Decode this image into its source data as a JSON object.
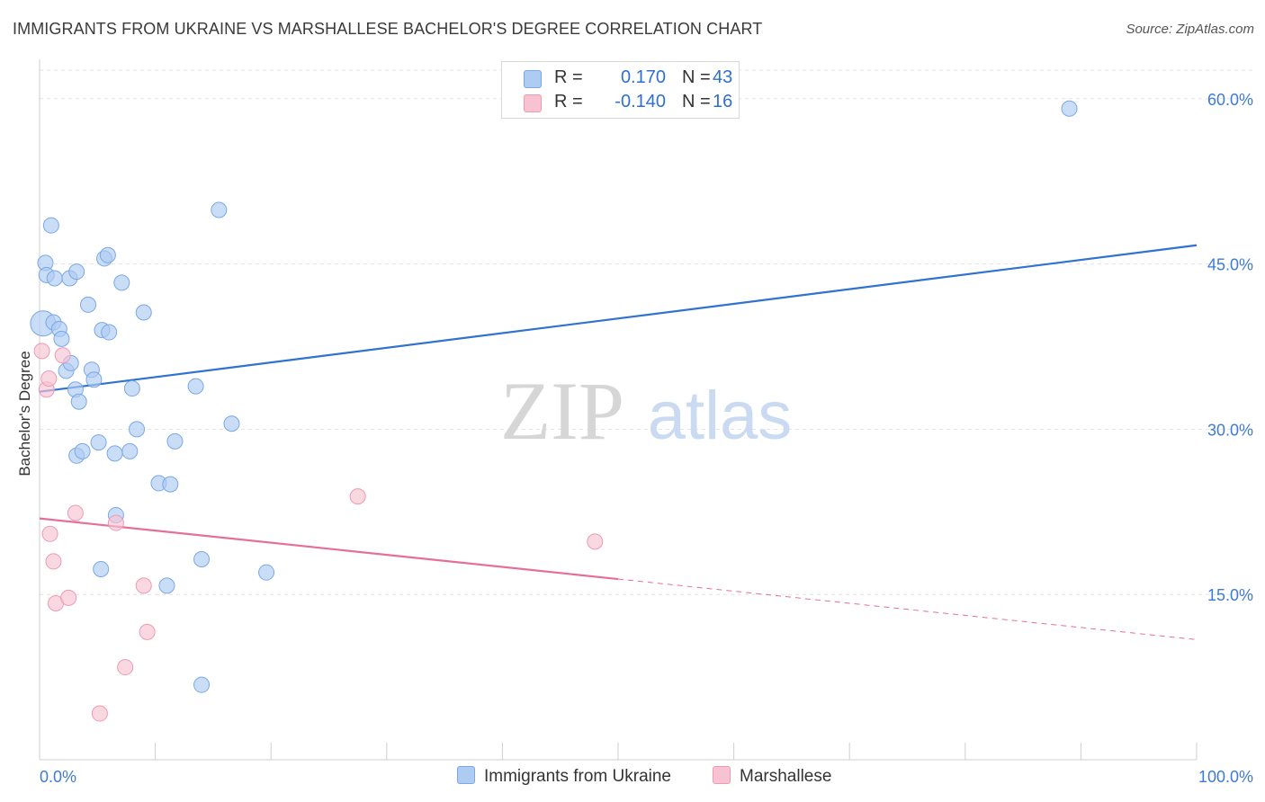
{
  "title": "IMMIGRANTS FROM UKRAINE VS MARSHALLESE BACHELOR'S DEGREE CORRELATION CHART",
  "source": "Source: ZipAtlas.com",
  "watermark": {
    "zip": "ZIP",
    "atlas": "atlas"
  },
  "colors": {
    "blue_fill": "#aecbf2",
    "blue_stroke": "#7aa8e6",
    "blue_line": "#2f72cf",
    "pink_fill": "#f7c3d3",
    "pink_stroke": "#ee9ab4",
    "pink_line": "#e4709a",
    "tick_text": "#3d7bd6",
    "grid": "#e3e3e3"
  },
  "legend": {
    "rows": [
      {
        "r_label": "R =",
        "r_value": "0.170",
        "n_label": "N =",
        "n_value": "43"
      },
      {
        "r_label": "R =",
        "r_value": "-0.140",
        "n_label": "N =",
        "n_value": "16"
      }
    ]
  },
  "bottom_legend": {
    "series1": "Immigrants from Ukraine",
    "series2": "Marshallese"
  },
  "chart_data": {
    "type": "scatter",
    "title": "IMMIGRANTS FROM UKRAINE VS MARSHALLESE BACHELOR'S DEGREE CORRELATION CHART",
    "xlabel": "",
    "ylabel": "Bachelor's Degree",
    "xlim": [
      0,
      100
    ],
    "ylim": [
      0,
      63
    ],
    "x_tick_labels": [
      "0.0%",
      "100.0%"
    ],
    "y_ticks": [
      15,
      30,
      45,
      60
    ],
    "y_tick_labels": [
      "15.0%",
      "30.0%",
      "45.0%",
      "60.0%"
    ],
    "grid": true,
    "series": [
      {
        "name": "Immigrants from Ukraine",
        "r": 0.17,
        "n": 43,
        "trend": {
          "x": [
            0,
            100
          ],
          "y": [
            33.4,
            46.7
          ],
          "dash_from": null
        },
        "points": [
          {
            "x": 0.3,
            "y": 39.6,
            "big": true
          },
          {
            "x": 0.5,
            "y": 45.1
          },
          {
            "x": 0.6,
            "y": 44.0
          },
          {
            "x": 1.0,
            "y": 48.5
          },
          {
            "x": 1.3,
            "y": 43.7
          },
          {
            "x": 1.2,
            "y": 39.7
          },
          {
            "x": 1.7,
            "y": 39.1
          },
          {
            "x": 1.9,
            "y": 38.2
          },
          {
            "x": 2.3,
            "y": 35.3
          },
          {
            "x": 2.7,
            "y": 36.0
          },
          {
            "x": 3.1,
            "y": 33.6
          },
          {
            "x": 3.4,
            "y": 32.5
          },
          {
            "x": 3.2,
            "y": 27.6
          },
          {
            "x": 3.7,
            "y": 28.0
          },
          {
            "x": 2.6,
            "y": 43.7
          },
          {
            "x": 3.2,
            "y": 44.3
          },
          {
            "x": 4.2,
            "y": 41.3
          },
          {
            "x": 4.5,
            "y": 35.4
          },
          {
            "x": 4.7,
            "y": 34.5
          },
          {
            "x": 5.1,
            "y": 28.8
          },
          {
            "x": 5.4,
            "y": 39.0
          },
          {
            "x": 5.6,
            "y": 45.5
          },
          {
            "x": 5.9,
            "y": 45.8
          },
          {
            "x": 6.0,
            "y": 38.8
          },
          {
            "x": 6.5,
            "y": 27.8
          },
          {
            "x": 7.1,
            "y": 43.3
          },
          {
            "x": 7.8,
            "y": 28.0
          },
          {
            "x": 8.0,
            "y": 33.7
          },
          {
            "x": 8.4,
            "y": 30.0
          },
          {
            "x": 9.0,
            "y": 40.6
          },
          {
            "x": 10.3,
            "y": 25.1
          },
          {
            "x": 11.3,
            "y": 25.0
          },
          {
            "x": 11.7,
            "y": 28.9
          },
          {
            "x": 13.5,
            "y": 33.9
          },
          {
            "x": 15.5,
            "y": 49.9
          },
          {
            "x": 16.6,
            "y": 30.5
          },
          {
            "x": 6.6,
            "y": 22.2
          },
          {
            "x": 5.3,
            "y": 17.3
          },
          {
            "x": 11.0,
            "y": 15.8
          },
          {
            "x": 14.0,
            "y": 18.2
          },
          {
            "x": 19.6,
            "y": 17.0
          },
          {
            "x": 14.0,
            "y": 6.8
          },
          {
            "x": 89.0,
            "y": 59.1
          }
        ]
      },
      {
        "name": "Marshallese",
        "r": -0.14,
        "n": 16,
        "trend": {
          "x": [
            0,
            100
          ],
          "y": [
            21.9,
            10.9
          ],
          "dash_from": 50
        },
        "points": [
          {
            "x": 0.2,
            "y": 37.1
          },
          {
            "x": 0.6,
            "y": 33.6
          },
          {
            "x": 0.8,
            "y": 34.6
          },
          {
            "x": 2.0,
            "y": 36.7
          },
          {
            "x": 0.9,
            "y": 20.5
          },
          {
            "x": 1.2,
            "y": 18.0
          },
          {
            "x": 3.1,
            "y": 22.4
          },
          {
            "x": 6.6,
            "y": 21.5
          },
          {
            "x": 1.4,
            "y": 14.2
          },
          {
            "x": 2.5,
            "y": 14.7
          },
          {
            "x": 9.0,
            "y": 15.8
          },
          {
            "x": 9.3,
            "y": 11.6
          },
          {
            "x": 7.4,
            "y": 8.4
          },
          {
            "x": 5.2,
            "y": 4.2
          },
          {
            "x": 27.5,
            "y": 23.9
          },
          {
            "x": 48.0,
            "y": 19.8
          }
        ]
      }
    ]
  }
}
